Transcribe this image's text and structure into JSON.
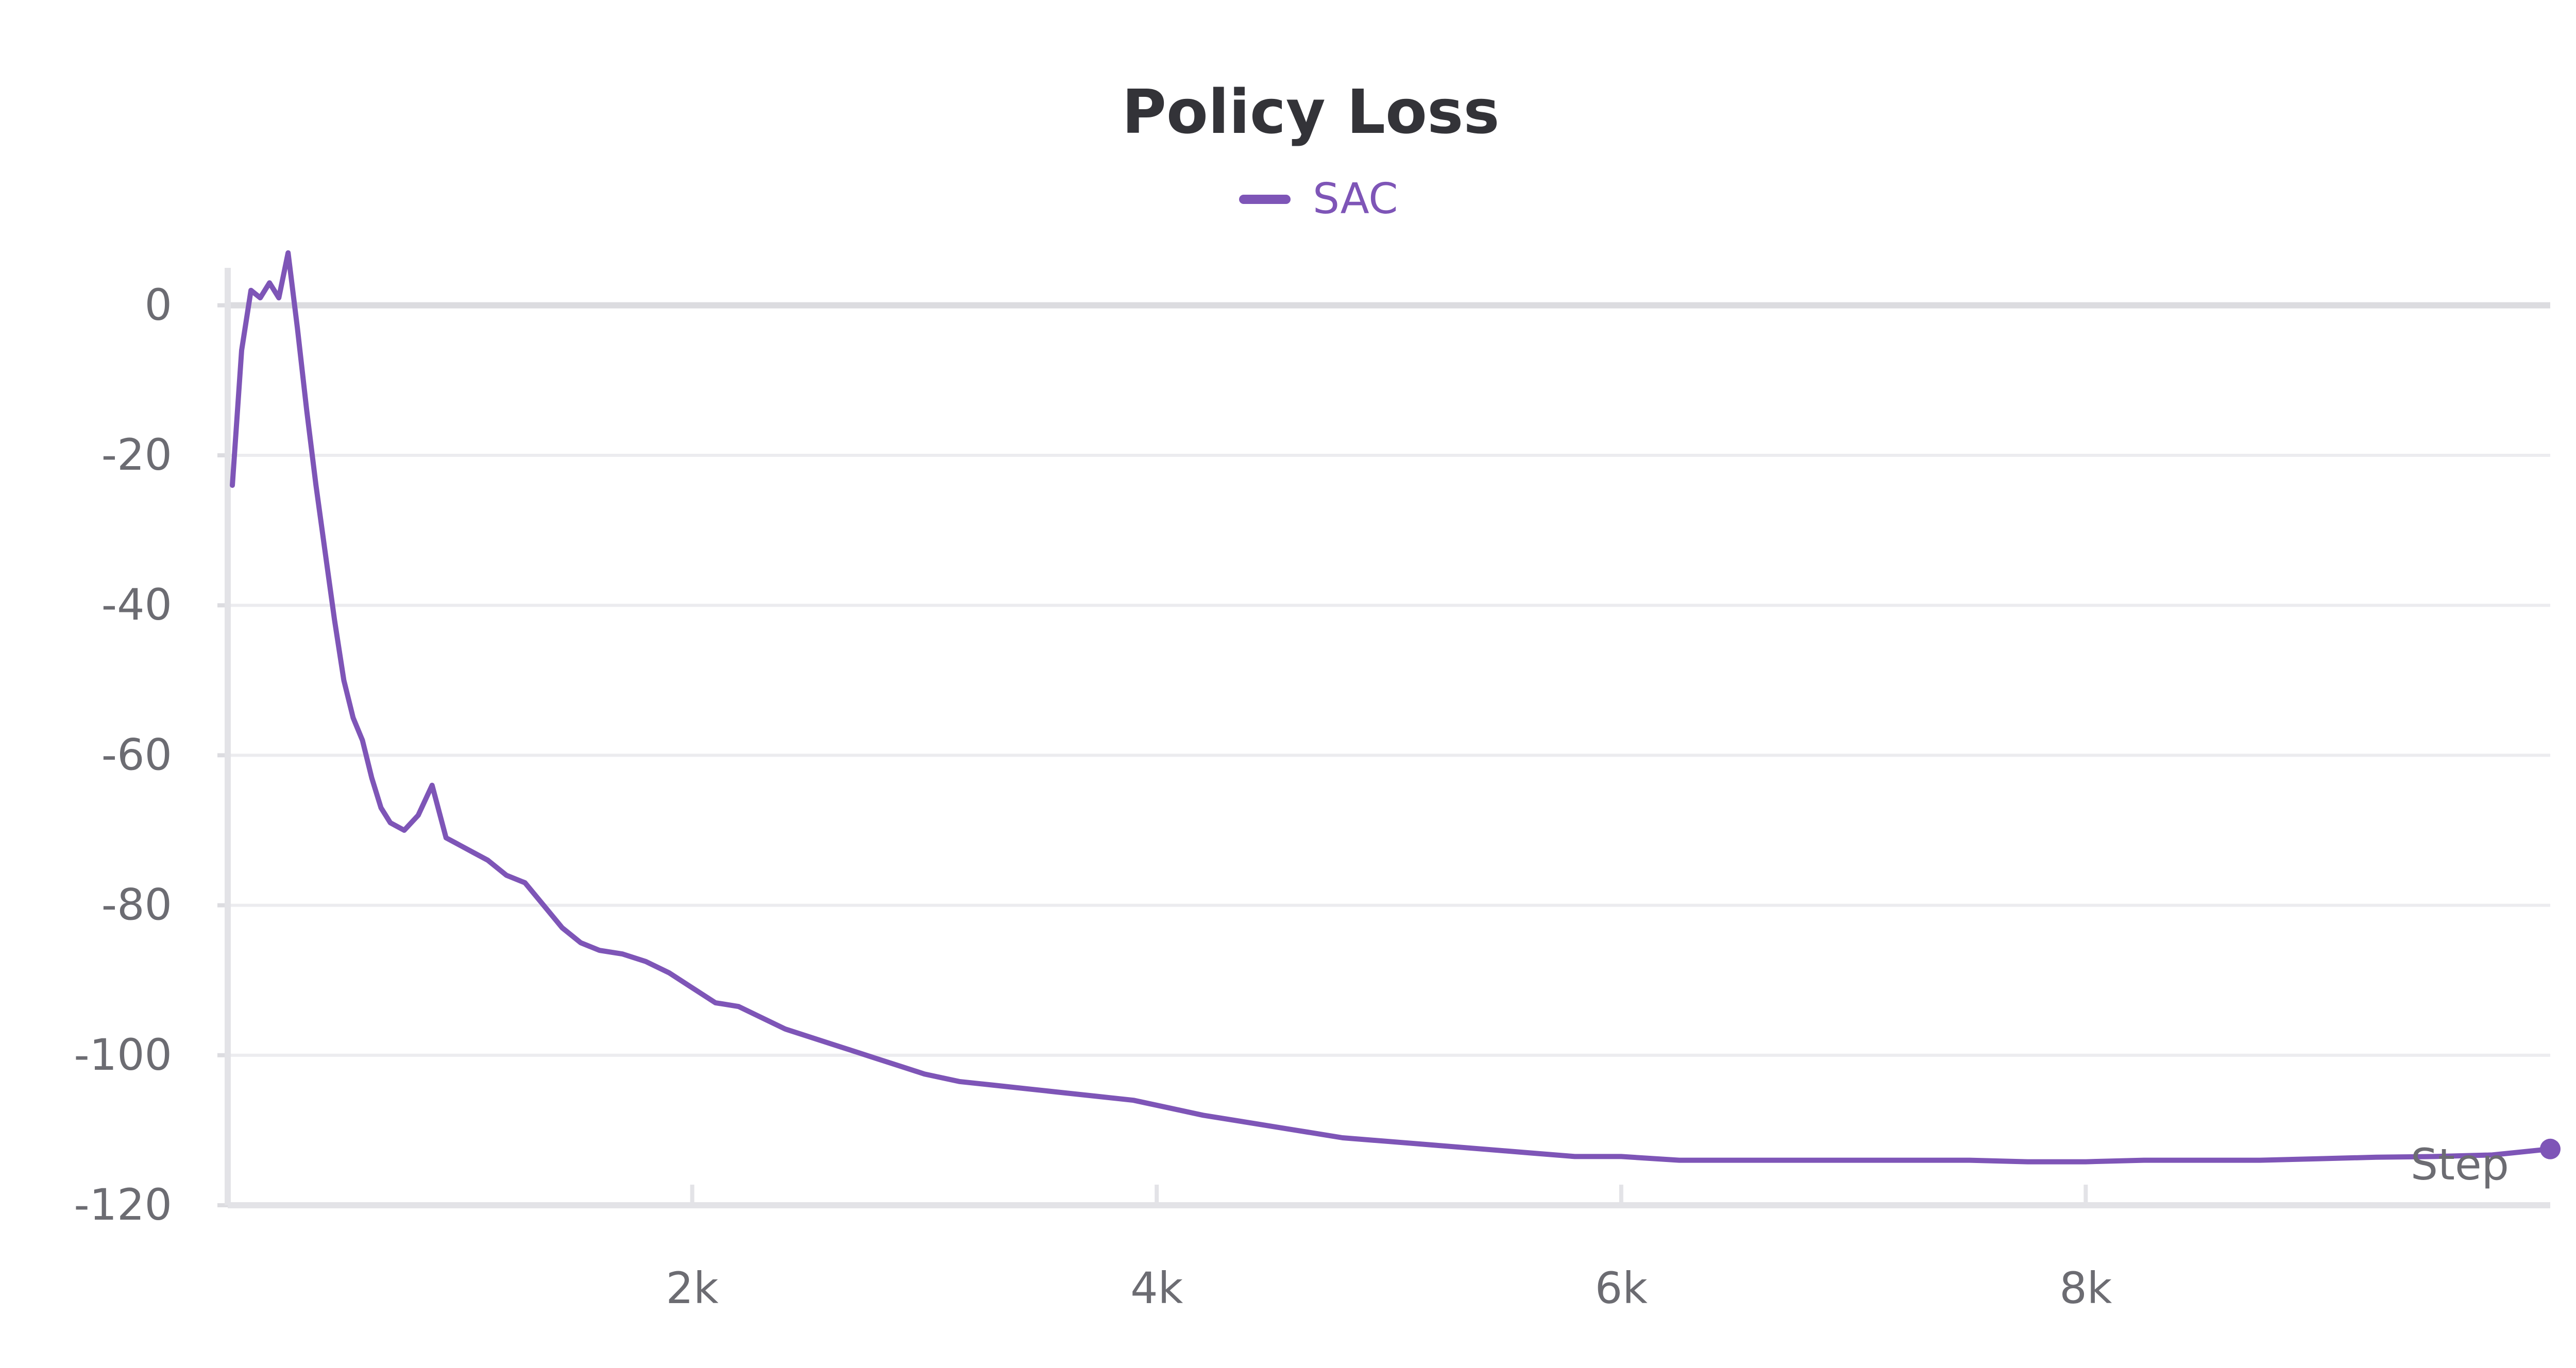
{
  "chart_data": {
    "type": "line",
    "title": "Policy Loss",
    "xlabel": "Step",
    "ylabel": "",
    "legend": {
      "placement": "top-center",
      "entries": [
        "SAC"
      ]
    },
    "grid": true,
    "xlim": [
      0,
      10000
    ],
    "ylim": [
      -120,
      5
    ],
    "x_ticks": [
      2000,
      4000,
      6000,
      8000
    ],
    "x_tick_labels": [
      "2k",
      "4k",
      "6k",
      "8k"
    ],
    "y_ticks": [
      0,
      -20,
      -40,
      -60,
      -80,
      -100,
      -120
    ],
    "y_tick_labels": [
      "0",
      "-20",
      "-40",
      "-60",
      "-80",
      "-100",
      "-120"
    ],
    "series": [
      {
        "name": "SAC",
        "color": "#7e55b7",
        "x": [
          20,
          60,
          100,
          140,
          180,
          220,
          260,
          300,
          340,
          380,
          420,
          460,
          500,
          540,
          580,
          620,
          660,
          700,
          760,
          820,
          880,
          940,
          1000,
          1060,
          1120,
          1200,
          1280,
          1360,
          1440,
          1520,
          1600,
          1700,
          1800,
          1900,
          2000,
          2100,
          2200,
          2300,
          2400,
          2500,
          2600,
          2700,
          2800,
          2900,
          3000,
          3150,
          3300,
          3450,
          3600,
          3750,
          3900,
          4050,
          4200,
          4400,
          4600,
          4800,
          5000,
          5200,
          5400,
          5600,
          5800,
          6000,
          6250,
          6500,
          6750,
          7000,
          7250,
          7500,
          7750,
          8000,
          8250,
          8500,
          8750,
          9000,
          9250,
          9500,
          9750,
          10000
        ],
        "y": [
          -24,
          -6,
          2,
          1,
          3,
          1,
          7,
          -3,
          -14,
          -24,
          -33,
          -42,
          -50,
          -55,
          -58,
          -63,
          -67,
          -69,
          -70,
          -68,
          -64,
          -71,
          -72,
          -73,
          -74,
          -76,
          -77,
          -80,
          -83,
          -85,
          -86,
          -86.5,
          -87.5,
          -89,
          -91,
          -93,
          -93.5,
          -95,
          -96.5,
          -97.5,
          -98.5,
          -99.5,
          -100.5,
          -101.5,
          -102.5,
          -103.5,
          -104,
          -104.5,
          -105,
          -105.5,
          -106,
          -107,
          -108,
          -109,
          -110,
          -111,
          -111.5,
          -112,
          -112.5,
          -113,
          -113.5,
          -113.5,
          -114,
          -114,
          -114,
          -114,
          -114,
          -114,
          -114.2,
          -114.2,
          -114,
          -114,
          -114,
          -113.8,
          -113.6,
          -113.5,
          -113.3,
          -112.5
        ]
      }
    ]
  }
}
